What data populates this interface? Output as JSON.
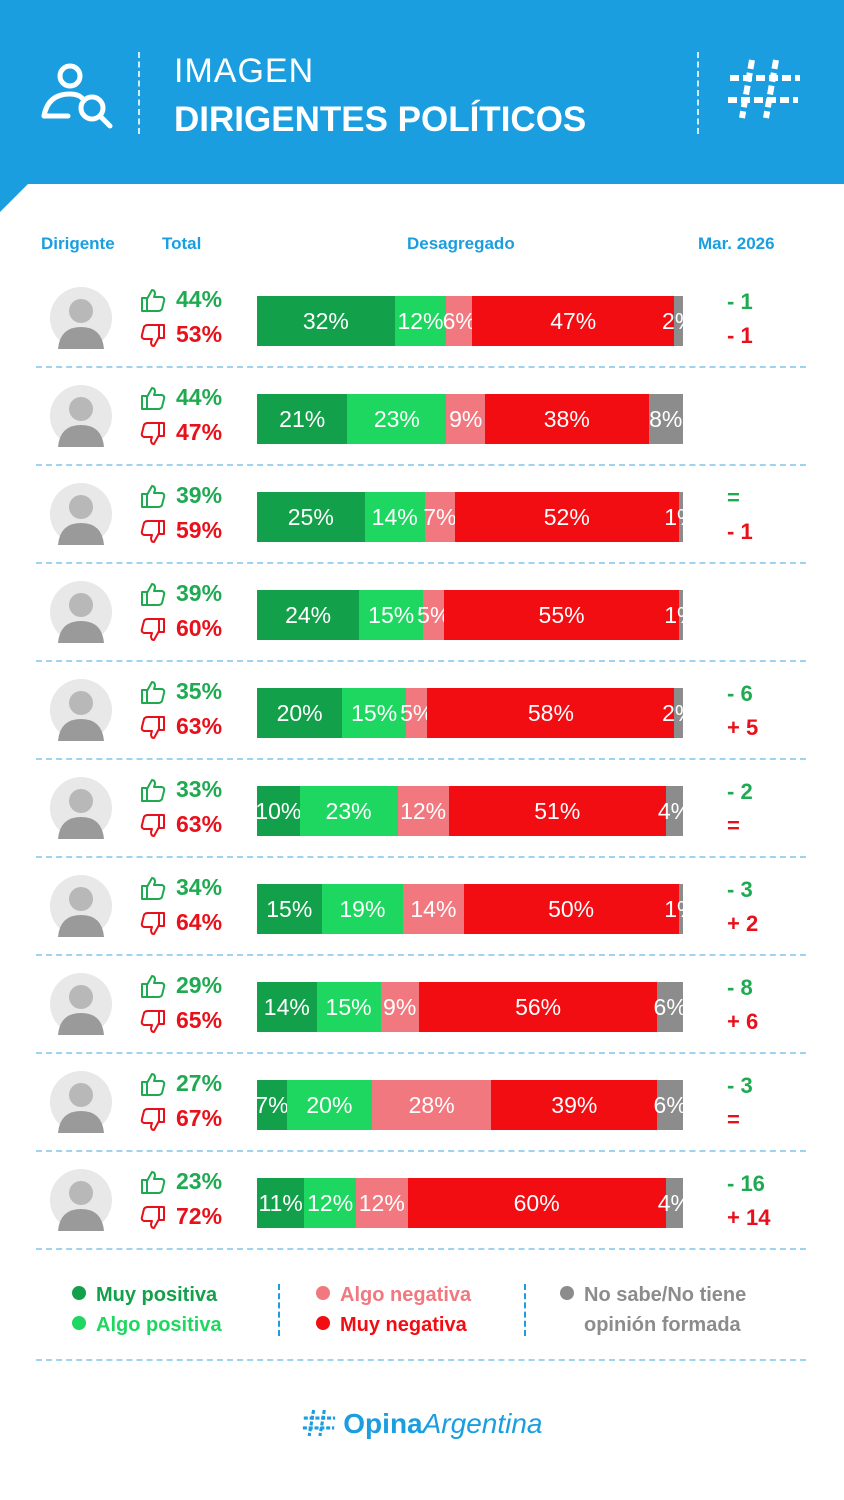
{
  "header": {
    "title_line1": "IMAGEN",
    "title_line2": "DIRIGENTES POLÍTICOS",
    "left_icon": "person-search-icon",
    "right_icon": "hashtag-logo-icon",
    "color": "#1a9ee0"
  },
  "columns": {
    "dirigente": "Dirigente",
    "total": "Total",
    "desagregado": "Desagregado",
    "period": "Mar. 2026"
  },
  "colors": {
    "muy_positiva": "#13a04a",
    "algo_positiva": "#1ed760",
    "algo_negativa": "#f2787f",
    "muy_negativa": "#f10d12",
    "no_sabe": "#8c8c8c",
    "positive_text": "#1faa52",
    "negative_text": "#e8101a"
  },
  "chart_data": {
    "type": "bar",
    "orientation": "horizontal-stacked",
    "title": "Imagen dirigentes políticos",
    "series_names": [
      "Muy positiva",
      "Algo positiva",
      "Algo negativa",
      "Muy negativa",
      "No sabe/No tiene opinión formada"
    ],
    "rows": [
      {
        "positive_total": "44%",
        "negative_total": "53%",
        "values": [
          32,
          12,
          6,
          47,
          2
        ],
        "labels": [
          "32%",
          "12%",
          "6%",
          "47%",
          "2%"
        ],
        "change_pos": "- 1",
        "change_neg": "- 1"
      },
      {
        "positive_total": "44%",
        "negative_total": "47%",
        "values": [
          21,
          23,
          9,
          38,
          8
        ],
        "labels": [
          "21%",
          "23%",
          "9%",
          "38%",
          "8%"
        ],
        "change_pos": "",
        "change_neg": ""
      },
      {
        "positive_total": "39%",
        "negative_total": "59%",
        "values": [
          25,
          14,
          7,
          52,
          1
        ],
        "labels": [
          "25%",
          "14%",
          "7%",
          "52%",
          "1%"
        ],
        "change_pos": "=",
        "change_neg": "- 1"
      },
      {
        "positive_total": "39%",
        "negative_total": "60%",
        "values": [
          24,
          15,
          5,
          55,
          1
        ],
        "labels": [
          "24%",
          "15%",
          "5%",
          "55%",
          "1%"
        ],
        "change_pos": "",
        "change_neg": ""
      },
      {
        "positive_total": "35%",
        "negative_total": "63%",
        "values": [
          20,
          15,
          5,
          58,
          2
        ],
        "labels": [
          "20%",
          "15%",
          "5%",
          "58%",
          "2%"
        ],
        "change_pos": "- 6",
        "change_neg": "+ 5"
      },
      {
        "positive_total": "33%",
        "negative_total": "63%",
        "values": [
          10,
          23,
          12,
          51,
          4
        ],
        "labels": [
          "10%",
          "23%",
          "12%",
          "51%",
          "4%"
        ],
        "change_pos": "- 2",
        "change_neg": "="
      },
      {
        "positive_total": "34%",
        "negative_total": "64%",
        "values": [
          15,
          19,
          14,
          50,
          1
        ],
        "labels": [
          "15%",
          "19%",
          "14%",
          "50%",
          "1%"
        ],
        "change_pos": "- 3",
        "change_neg": "+ 2"
      },
      {
        "positive_total": "29%",
        "negative_total": "65%",
        "values": [
          14,
          15,
          9,
          56,
          6
        ],
        "labels": [
          "14%",
          "15%",
          "9%",
          "56%",
          "6%"
        ],
        "change_pos": "- 8",
        "change_neg": "+ 6"
      },
      {
        "positive_total": "27%",
        "negative_total": "67%",
        "values": [
          7,
          20,
          28,
          39,
          6
        ],
        "labels": [
          "7%",
          "20%",
          "28%",
          "39%",
          "6%"
        ],
        "change_pos": "- 3",
        "change_neg": "="
      },
      {
        "positive_total": "23%",
        "negative_total": "72%",
        "values": [
          11,
          12,
          12,
          60,
          4
        ],
        "labels": [
          "11%",
          "12%",
          "12%",
          "60%",
          "4%"
        ],
        "change_pos": "- 16",
        "change_neg": "+ 14"
      }
    ]
  },
  "legend": {
    "muy_positiva": "Muy positiva",
    "algo_positiva": "Algo positiva",
    "algo_negativa": "Algo negativa",
    "muy_negativa": "Muy negativa",
    "no_sabe_line1": "No sabe/No tiene",
    "no_sabe_line2": "opinión formada"
  },
  "footer": {
    "brand_bold": "Opina",
    "brand_rest": "Argentina",
    "icon": "hashtag-logo-icon"
  }
}
